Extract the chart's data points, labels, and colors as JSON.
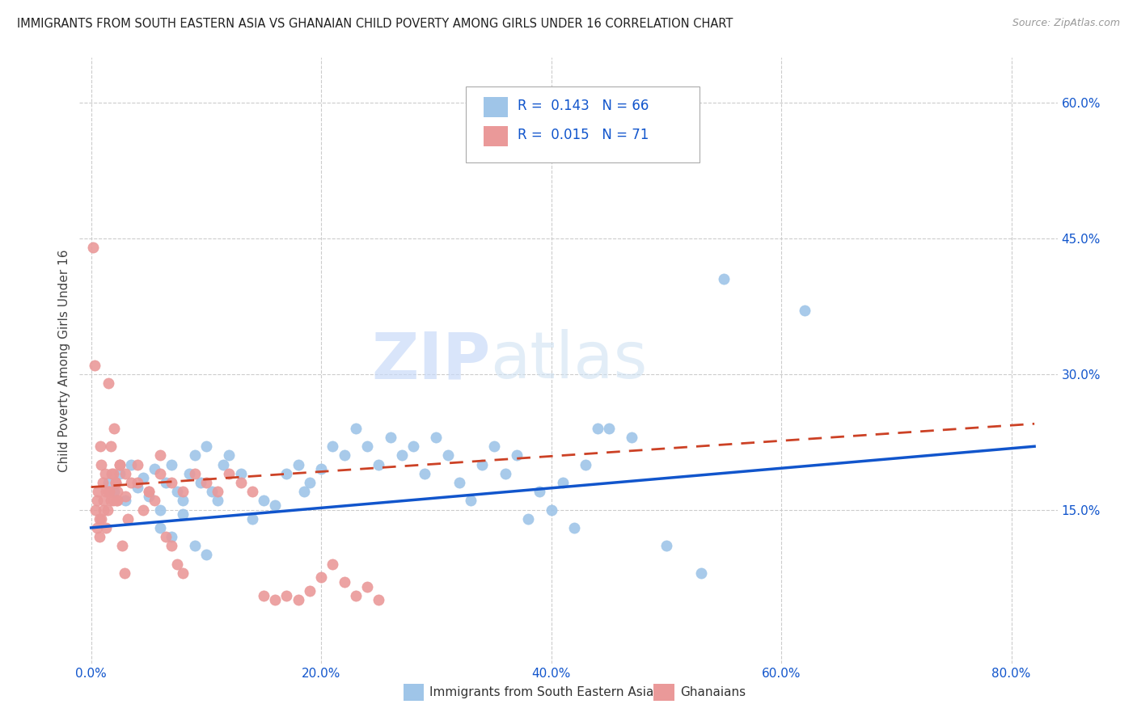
{
  "title": "IMMIGRANTS FROM SOUTH EASTERN ASIA VS GHANAIAN CHILD POVERTY AMONG GIRLS UNDER 16 CORRELATION CHART",
  "source": "Source: ZipAtlas.com",
  "ylabel": "Child Poverty Among Girls Under 16",
  "xlabel_ticks": [
    "0.0%",
    "20.0%",
    "40.0%",
    "60.0%",
    "80.0%"
  ],
  "xlabel_vals": [
    0,
    20,
    40,
    60,
    80
  ],
  "ylabel_ticks": [
    "15.0%",
    "30.0%",
    "45.0%",
    "60.0%"
  ],
  "ylabel_vals": [
    15,
    30,
    45,
    60
  ],
  "xlim": [
    -1,
    84
  ],
  "ylim": [
    -2,
    65
  ],
  "blue_color": "#9fc5e8",
  "pink_color": "#ea9999",
  "blue_line_color": "#1155cc",
  "pink_line_color": "#cc4125",
  "watermark_zip": "ZIP",
  "watermark_atlas": "atlas",
  "blue_scatter_x": [
    1.5,
    2.0,
    2.5,
    3.0,
    3.5,
    4.0,
    4.5,
    5.0,
    5.5,
    6.0,
    6.5,
    7.0,
    7.5,
    8.0,
    8.5,
    9.0,
    9.5,
    10.0,
    10.5,
    11.0,
    11.5,
    12.0,
    13.0,
    14.0,
    15.0,
    16.0,
    17.0,
    18.0,
    18.5,
    19.0,
    20.0,
    21.0,
    22.0,
    23.0,
    24.0,
    25.0,
    26.0,
    27.0,
    28.0,
    29.0,
    30.0,
    31.0,
    32.0,
    33.0,
    34.0,
    35.0,
    36.0,
    37.0,
    38.0,
    39.0,
    40.0,
    41.0,
    42.0,
    43.0,
    44.0,
    45.0,
    47.0,
    50.0,
    53.0,
    55.0,
    62.0,
    6.0,
    7.0,
    8.0,
    9.0,
    10.0
  ],
  "blue_scatter_y": [
    18.0,
    17.0,
    19.0,
    16.0,
    20.0,
    17.5,
    18.5,
    16.5,
    19.5,
    15.0,
    18.0,
    20.0,
    17.0,
    16.0,
    19.0,
    21.0,
    18.0,
    22.0,
    17.0,
    16.0,
    20.0,
    21.0,
    19.0,
    14.0,
    16.0,
    15.5,
    19.0,
    20.0,
    17.0,
    18.0,
    19.5,
    22.0,
    21.0,
    24.0,
    22.0,
    20.0,
    23.0,
    21.0,
    22.0,
    19.0,
    23.0,
    21.0,
    18.0,
    16.0,
    20.0,
    22.0,
    19.0,
    21.0,
    14.0,
    17.0,
    15.0,
    18.0,
    13.0,
    20.0,
    24.0,
    24.0,
    23.0,
    11.0,
    8.0,
    40.5,
    37.0,
    13.0,
    12.0,
    14.5,
    11.0,
    10.0
  ],
  "pink_scatter_x": [
    0.2,
    0.3,
    0.4,
    0.5,
    0.6,
    0.7,
    0.8,
    0.9,
    1.0,
    1.1,
    1.2,
    1.3,
    1.4,
    1.5,
    1.6,
    1.7,
    1.8,
    1.9,
    2.0,
    2.1,
    2.2,
    2.3,
    2.5,
    2.7,
    2.9,
    3.0,
    3.2,
    3.5,
    4.0,
    4.5,
    5.0,
    5.5,
    6.0,
    6.5,
    7.0,
    7.5,
    8.0,
    0.5,
    0.7,
    0.9,
    1.1,
    1.3,
    1.5,
    1.7,
    1.9,
    2.1,
    2.3,
    2.5,
    3.0,
    4.0,
    5.0,
    6.0,
    7.0,
    8.0,
    9.0,
    10.0,
    11.0,
    12.0,
    13.0,
    14.0,
    15.0,
    16.0,
    17.0,
    18.0,
    19.0,
    20.0,
    21.0,
    22.0,
    23.0,
    24.0,
    25.0
  ],
  "pink_scatter_y": [
    44.0,
    31.0,
    15.0,
    16.0,
    17.0,
    14.0,
    22.0,
    20.0,
    18.0,
    16.0,
    19.0,
    17.0,
    15.0,
    29.0,
    17.0,
    22.0,
    19.0,
    16.0,
    24.0,
    18.0,
    16.0,
    17.0,
    20.0,
    11.0,
    8.0,
    16.5,
    14.0,
    18.0,
    20.0,
    15.0,
    17.0,
    16.0,
    21.0,
    12.0,
    11.0,
    9.0,
    8.0,
    13.0,
    12.0,
    14.0,
    15.0,
    13.0,
    17.0,
    16.0,
    19.0,
    18.0,
    16.0,
    20.0,
    19.0,
    18.0,
    17.0,
    19.0,
    18.0,
    17.0,
    19.0,
    18.0,
    17.0,
    19.0,
    18.0,
    17.0,
    5.5,
    5.0,
    5.5,
    5.0,
    6.0,
    7.5,
    9.0,
    7.0,
    5.5,
    6.5,
    5.0
  ]
}
